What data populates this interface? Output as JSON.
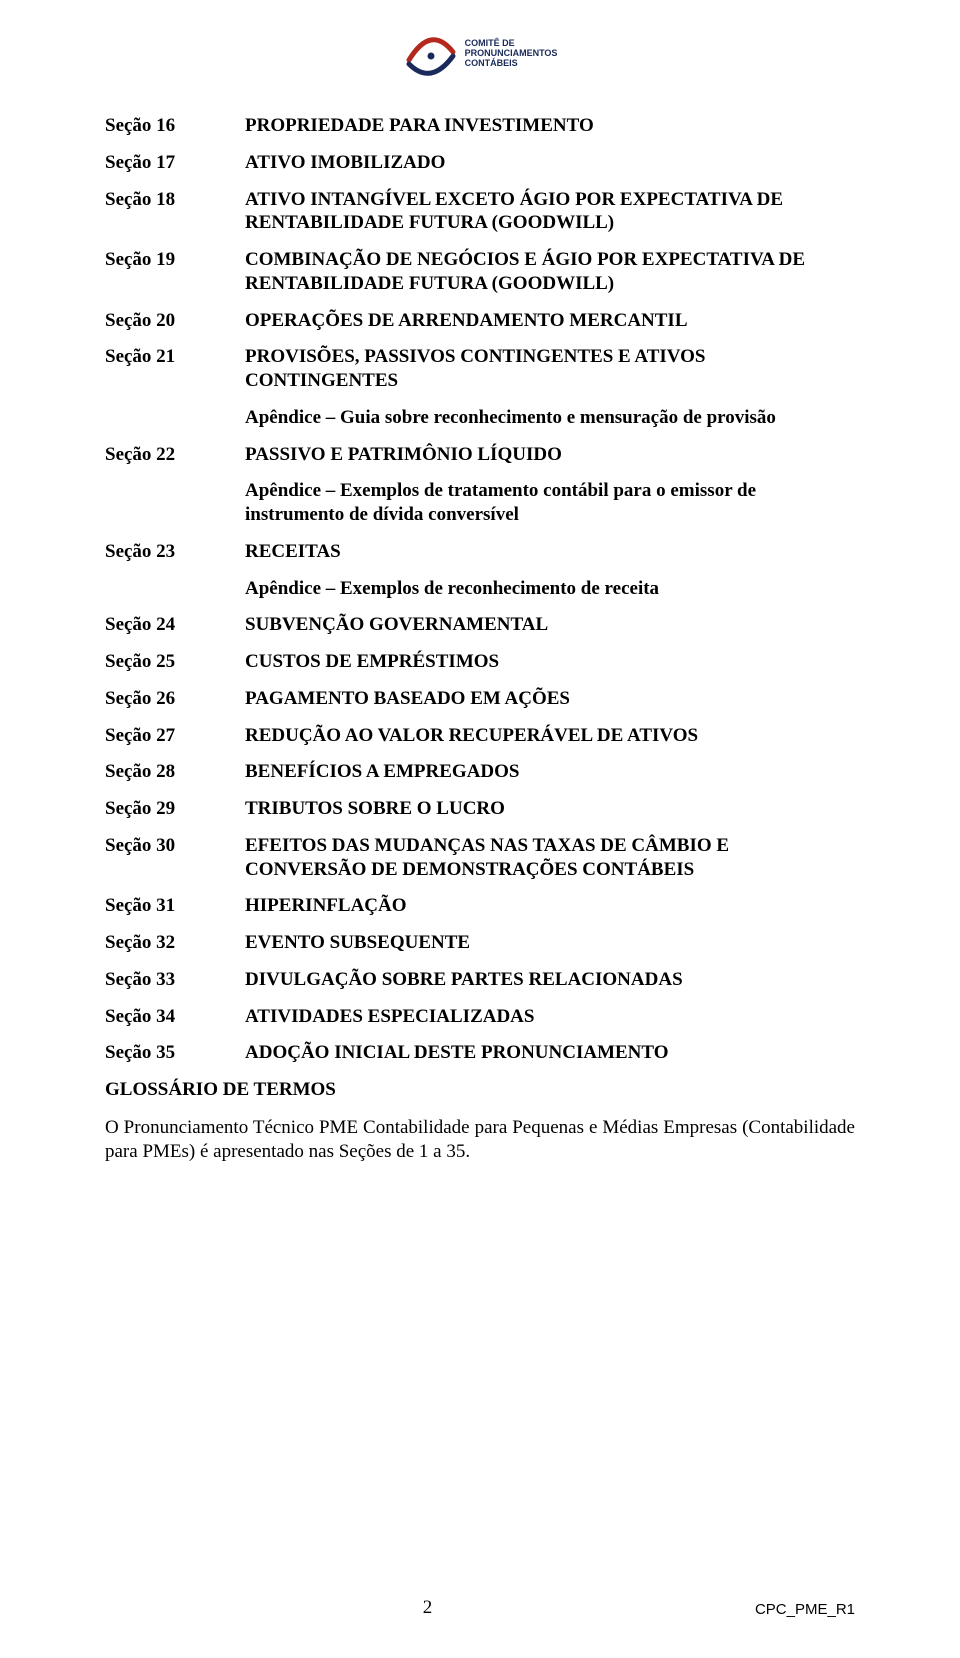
{
  "logo": {
    "line1": "COMITÊ DE",
    "line2": "PRONUNCIAMENTOS",
    "line3": "CONTÁBEIS",
    "arc_color_top": "#b5281e",
    "arc_color_bottom": "#1a2a5a"
  },
  "sections": [
    {
      "label": "Seção 16",
      "title": "PROPRIEDADE PARA INVESTIMENTO"
    },
    {
      "label": "Seção 17",
      "title": "ATIVO IMOBILIZADO"
    },
    {
      "label": "Seção 18",
      "title": "ATIVO INTANGÍVEL EXCETO ÁGIO POR EXPECTATIVA DE RENTABILIDADE FUTURA (GOODWILL)"
    },
    {
      "label": "Seção 19",
      "title": "COMBINAÇÃO DE NEGÓCIOS E ÁGIO POR EXPECTATIVA DE RENTABILIDADE FUTURA (GOODWILL)"
    },
    {
      "label": "Seção 20",
      "title": "OPERAÇÕES DE ARRENDAMENTO MERCANTIL"
    },
    {
      "label": "Seção 21",
      "title": "PROVISÕES, PASSIVOS CONTINGENTES E ATIVOS CONTINGENTES",
      "sub": "Apêndice – Guia sobre reconhecimento e mensuração de provisão"
    },
    {
      "label": "Seção 22",
      "title": "PASSIVO E PATRIMÔNIO LÍQUIDO",
      "sub": "Apêndice – Exemplos de tratamento contábil para o emissor de instrumento de dívida conversível"
    },
    {
      "label": "Seção 23",
      "title": "RECEITAS",
      "sub": "Apêndice – Exemplos de reconhecimento de receita"
    },
    {
      "label": "Seção 24",
      "title": "SUBVENÇÃO GOVERNAMENTAL"
    },
    {
      "label": "Seção 25",
      "title": "CUSTOS DE EMPRÉSTIMOS"
    },
    {
      "label": "Seção 26",
      "title": "PAGAMENTO BASEADO EM AÇÕES"
    },
    {
      "label": "Seção 27",
      "title": "REDUÇÃO AO VALOR RECUPERÁVEL DE ATIVOS"
    },
    {
      "label": "Seção 28",
      "title": "BENEFÍCIOS A EMPREGADOS"
    },
    {
      "label": "Seção 29",
      "title": "TRIBUTOS SOBRE O LUCRO"
    },
    {
      "label": "Seção 30",
      "title": "EFEITOS DAS MUDANÇAS NAS TAXAS DE CÂMBIO E CONVERSÃO DE DEMONSTRAÇÕES CONTÁBEIS"
    },
    {
      "label": "Seção 31",
      "title": "HIPERINFLAÇÃO"
    },
    {
      "label": "Seção 32",
      "title": "EVENTO SUBSEQUENTE"
    },
    {
      "label": "Seção 33",
      "title": "DIVULGAÇÃO SOBRE PARTES RELACIONADAS"
    },
    {
      "label": "Seção 34",
      "title": "ATIVIDADES ESPECIALIZADAS"
    },
    {
      "label": "Seção 35",
      "title": "ADOÇÃO INICIAL DESTE PRONUNCIAMENTO"
    }
  ],
  "glossario": "GLOSSÁRIO DE TERMOS",
  "footnote": "O Pronunciamento Técnico PME Contabilidade para Pequenas e Médias Empresas (Contabilidade para PMEs) é apresentado nas Seções de 1 a 35.",
  "footer": {
    "pagenum": "2",
    "doc_id": "CPC_PME_R1"
  }
}
